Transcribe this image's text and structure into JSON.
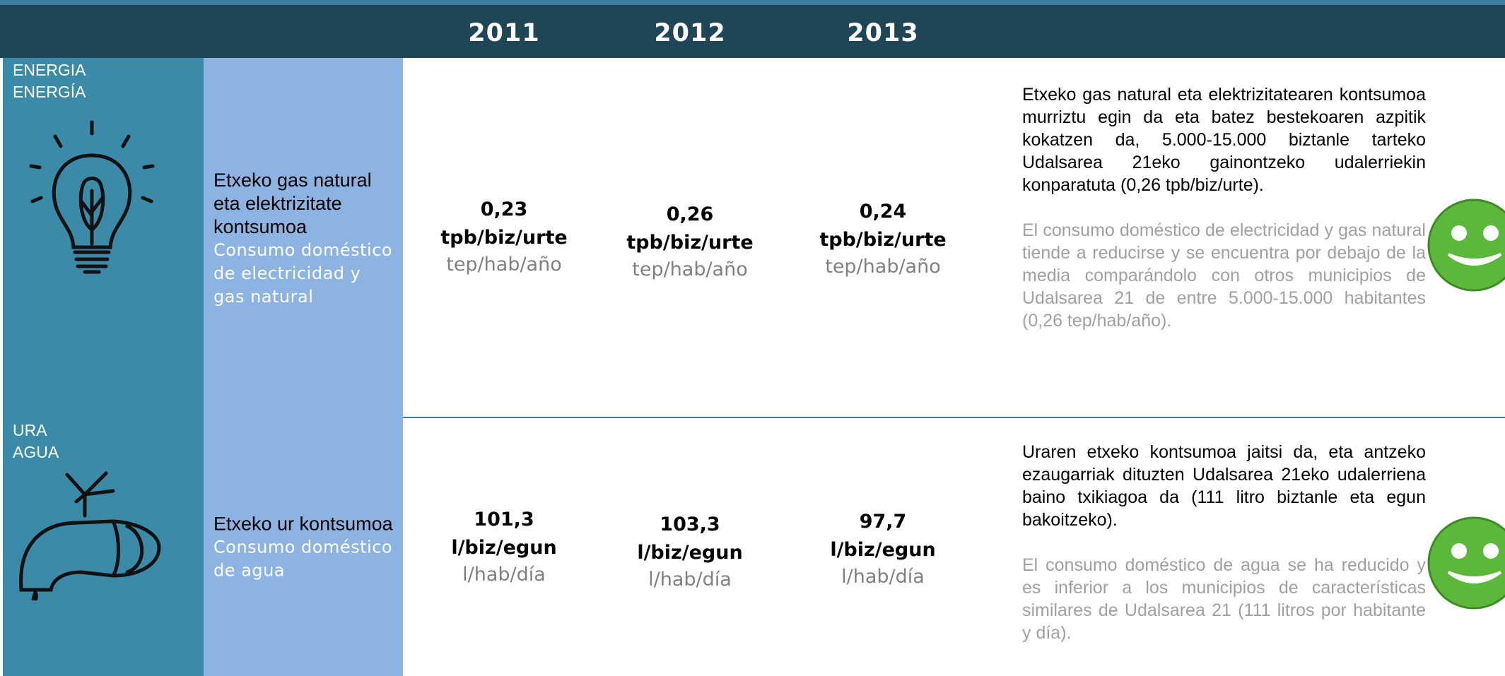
{
  "header": {
    "years": [
      "2011",
      "2012",
      "2013"
    ]
  },
  "rows": [
    {
      "category": [
        "ENERGIA",
        "ENERGÍA"
      ],
      "indicator_eu": "Etxeko gas natural eta elektrizitate kontsumoa",
      "indicator_es": "Consumo doméstico de electricidad y gas natural",
      "values": [
        {
          "value": "0,23",
          "unit_eu": "tpb/biz/urte",
          "unit_es": "tep/hab/año"
        },
        {
          "value": "0,26",
          "unit_eu": "tpb/biz/urte",
          "unit_es": "tep/hab/año"
        },
        {
          "value": "0,24",
          "unit_eu": "tpb/biz/urte",
          "unit_es": "tep/hab/año"
        }
      ],
      "comment_eu": "Etxeko gas natural eta elektrizitatearen kontsumoa murriztu egin da eta batez bestekoaren azpitik kokatzen da, 5.000-15.000 biztanle tarteko Udalsarea 21eko gainontzeko udalerriekin konparatuta (0,26 tpb/biz/urte).",
      "comment_es": "El consumo doméstico de electricidad y gas natural tiende a reducirse y se encuentra por debajo de la media comparándolo con otros municipios de Udalsarea 21 de entre 5.000-15.000 habitantes (0,26 tep/hab/año)."
    },
    {
      "category": [
        "URA",
        "AGUA"
      ],
      "indicator_eu": "Etxeko ur kontsumoa",
      "indicator_es": "Consumo doméstico de agua",
      "values": [
        {
          "value": "101,3",
          "unit_eu": "l/biz/egun",
          "unit_es": "l/hab/día"
        },
        {
          "value": "103,3",
          "unit_eu": "l/biz/egun",
          "unit_es": "l/hab/día"
        },
        {
          "value": "97,7",
          "unit_eu": "l/biz/egun",
          "unit_es": "l/hab/día"
        }
      ],
      "comment_eu": "Uraren etxeko kontsumoa jaitsi da, eta antzeko ezaugarriak dituzten Udalsarea 21eko udalerriena baino txikiagoa da (111 litro biztanle eta egun bakoitzeko).",
      "comment_es": "El consumo doméstico de agua se ha reducido y es inferior a los municipios de características similares de Udalsarea 21 (111 litros por habitante y día)."
    }
  ]
}
